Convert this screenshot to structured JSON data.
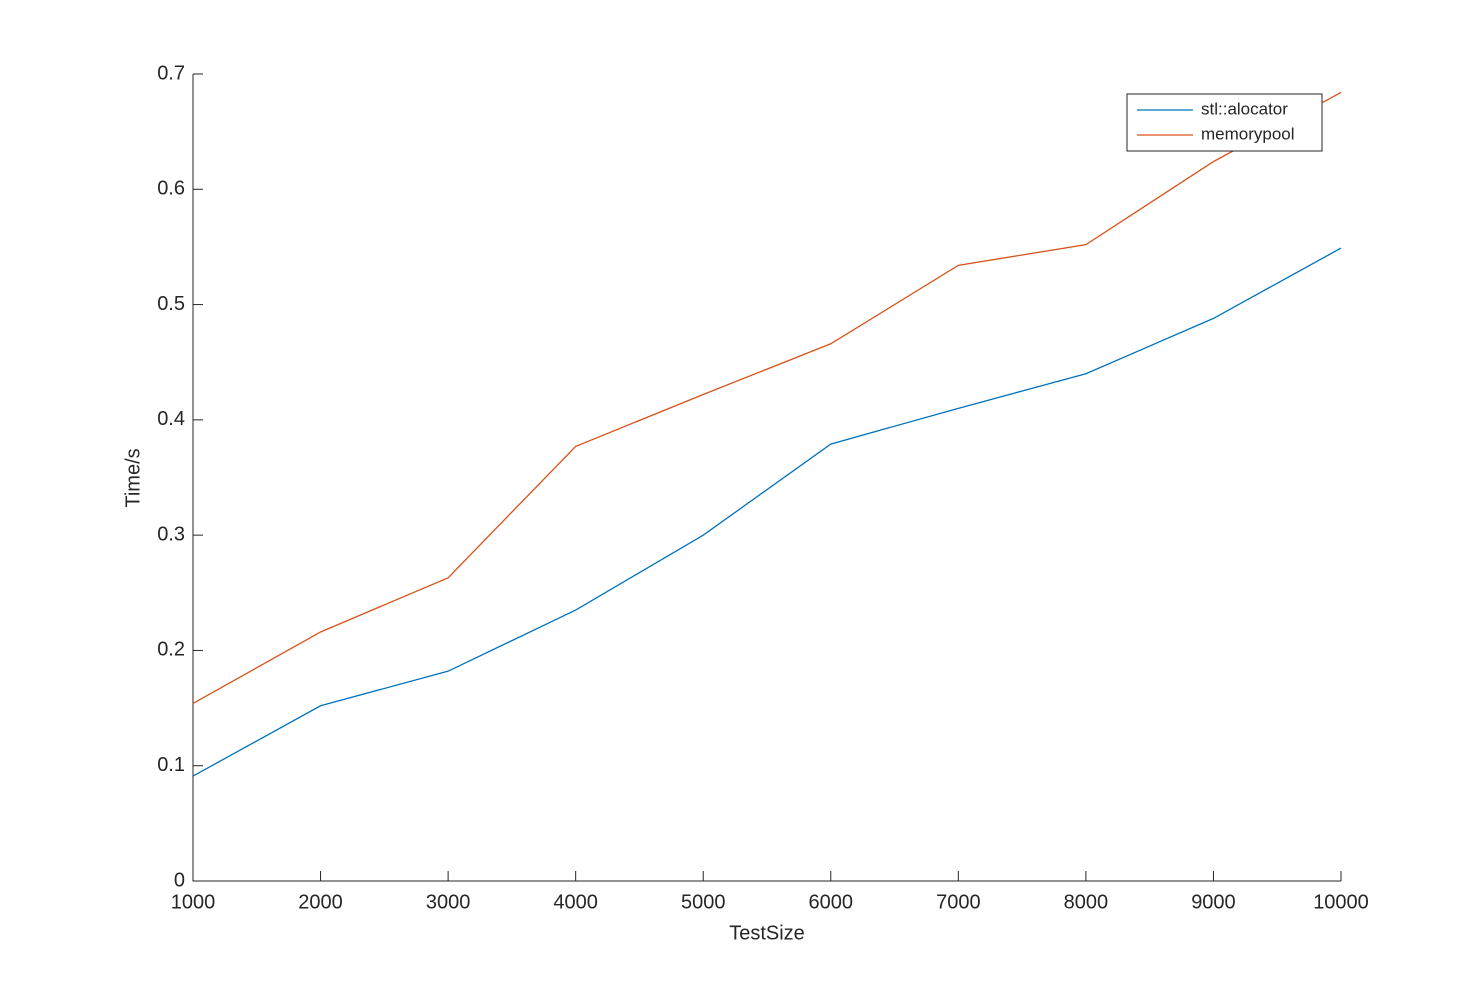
{
  "chart_data": {
    "type": "line",
    "x_label": "TestSize",
    "y_label": "Time/s",
    "x": [
      1000,
      2000,
      3000,
      4000,
      5000,
      6000,
      7000,
      8000,
      9000,
      10000
    ],
    "series": [
      {
        "name": "stl::alocator",
        "color": "#0072bd",
        "values": [
          0.091,
          0.152,
          0.182,
          0.235,
          0.3,
          0.379,
          0.41,
          0.44,
          0.488,
          0.549
        ]
      },
      {
        "name": "memorypool",
        "color": "#d95319",
        "values": [
          0.154,
          0.216,
          0.263,
          0.377,
          0.422,
          0.466,
          0.534,
          0.552,
          0.624,
          0.684
        ]
      }
    ],
    "xlim": [
      1000,
      10000
    ],
    "xticks": [
      1000,
      2000,
      3000,
      4000,
      5000,
      6000,
      7000,
      8000,
      9000,
      10000
    ],
    "ylim": [
      0,
      0.7
    ],
    "yticks": [
      0,
      0.1,
      0.2,
      0.3,
      0.4,
      0.5,
      0.6,
      0.7
    ],
    "legend": "northeast",
    "grid": false
  }
}
